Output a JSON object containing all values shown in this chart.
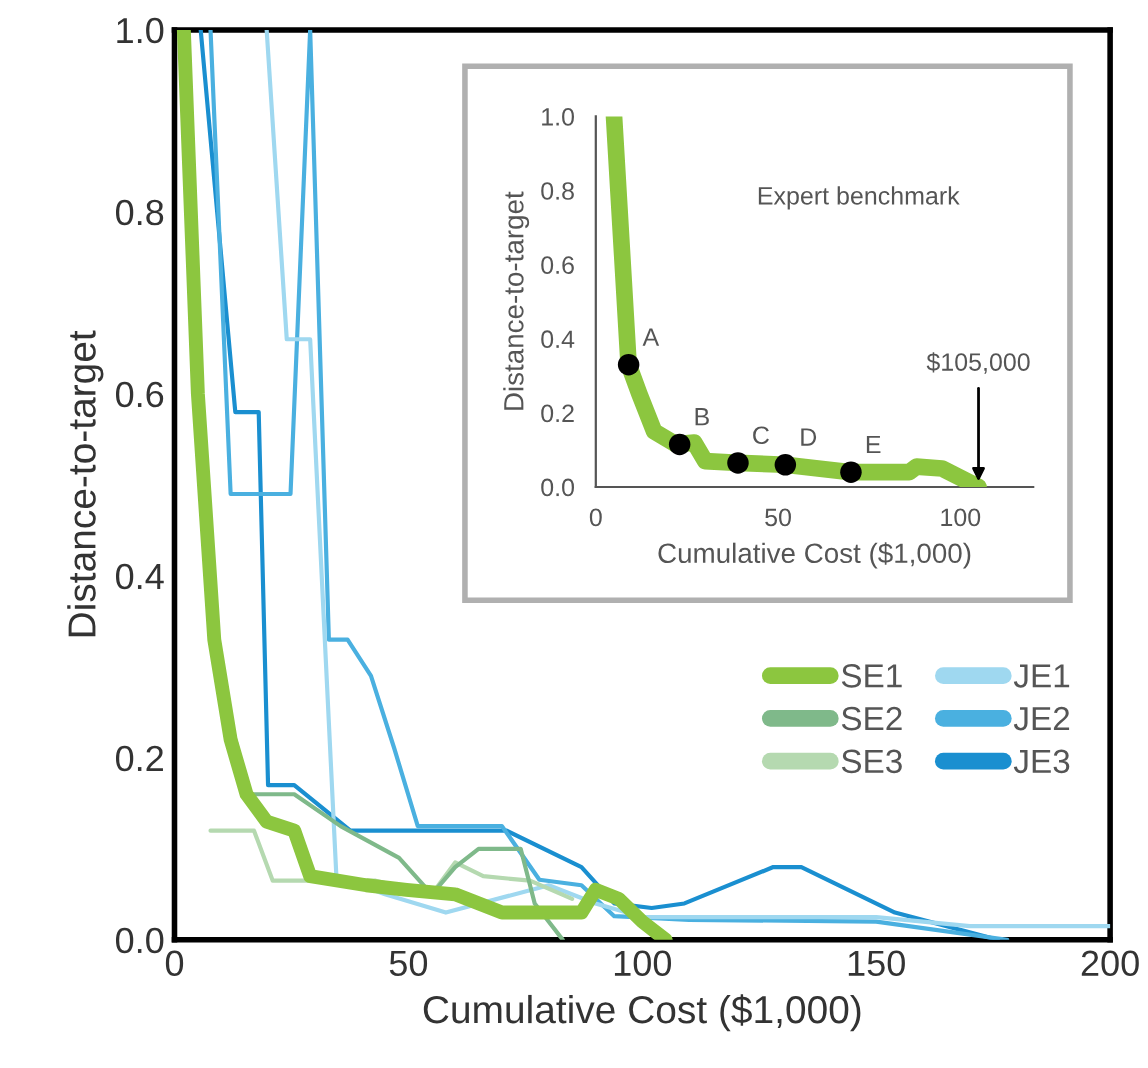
{
  "chart_data": [
    {
      "type": "line",
      "xlabel": "Cumulative Cost ($1,000)",
      "ylabel": "Distance-to-target",
      "xlim": [
        0,
        200
      ],
      "ylim": [
        0,
        1
      ],
      "xticks": [
        0,
        50,
        100,
        150,
        200
      ],
      "yticks": [
        {
          "value": 0,
          "label": "0.0"
        },
        {
          "value": 0.2,
          "label": "0.2"
        },
        {
          "value": 0.4,
          "label": "0.4"
        },
        {
          "value": 0.6,
          "label": "0.6"
        },
        {
          "value": 0.8,
          "label": "0.8"
        },
        {
          "value": 1,
          "label": "1.0"
        }
      ],
      "grid": false,
      "legend": "right",
      "series": [
        {
          "name": "SE1",
          "color": "#8cc63f",
          "x": [
            2,
            5,
            8.5,
            12,
            15.4,
            19.7,
            25.6,
            29,
            41,
            49.6,
            60,
            70,
            87,
            90,
            95,
            100,
            105
          ],
          "values": [
            1.0,
            0.6,
            0.33,
            0.22,
            0.16,
            0.13,
            0.12,
            0.07,
            0.06,
            0.055,
            0.05,
            0.03,
            0.03,
            0.055,
            0.045,
            0.02,
            0.0
          ]
        },
        {
          "name": "SE2",
          "color": "#7fb98a",
          "x": [
            9,
            16,
            25.6,
            35.5,
            48,
            55,
            60,
            65,
            74,
            77,
            83
          ],
          "values": [
            0.3,
            0.16,
            0.16,
            0.125,
            0.09,
            0.05,
            0.08,
            0.1,
            0.1,
            0.04,
            0.0
          ]
        },
        {
          "name": "SE3",
          "color": "#b5d9b0",
          "x": [
            7.7,
            17,
            21,
            43,
            55,
            60,
            66,
            76,
            85
          ],
          "values": [
            0.12,
            0.12,
            0.065,
            0.065,
            0.05,
            0.085,
            0.07,
            0.065,
            0.045
          ]
        },
        {
          "name": "JE1",
          "color": "#9fd8f0",
          "x": [
            19.7,
            24,
            29,
            34.6,
            45,
            58,
            80,
            90,
            100,
            150,
            170,
            200
          ],
          "values": [
            1.0,
            0.66,
            0.66,
            0.07,
            0.05,
            0.03,
            0.06,
            0.04,
            0.025,
            0.025,
            0.015,
            0.015
          ]
        },
        {
          "name": "JE2",
          "color": "#4ab0e0",
          "x": [
            7.7,
            12,
            24.8,
            29,
            33,
            37,
            42,
            47,
            52,
            70,
            78,
            87,
            94,
            110,
            150,
            178
          ],
          "values": [
            1.0,
            0.49,
            0.49,
            1.0,
            0.33,
            0.33,
            0.29,
            0.21,
            0.125,
            0.125,
            0.066,
            0.06,
            0.026,
            0.022,
            0.02,
            0.0
          ]
        },
        {
          "name": "JE3",
          "color": "#1a8fd0",
          "x": [
            5.6,
            13,
            18,
            20,
            25.6,
            37.6,
            71,
            87,
            94,
            102,
            109,
            128,
            134,
            154,
            176
          ],
          "values": [
            1.0,
            0.58,
            0.58,
            0.17,
            0.17,
            0.12,
            0.12,
            0.08,
            0.04,
            0.035,
            0.04,
            0.08,
            0.08,
            0.03,
            0.0
          ]
        }
      ]
    },
    {
      "type": "line",
      "xlabel": "Cumulative Cost ($1,000)",
      "ylabel": "Distance-to-target",
      "xlim": [
        0,
        120
      ],
      "ylim": [
        0,
        1
      ],
      "xticks": [
        0,
        50,
        100
      ],
      "yticks": [
        {
          "value": 0,
          "label": "0.0"
        },
        {
          "value": 0.2,
          "label": "0.2"
        },
        {
          "value": 0.4,
          "label": "0.4"
        },
        {
          "value": 0.6,
          "label": "0.6"
        },
        {
          "value": 0.8,
          "label": "0.8"
        },
        {
          "value": 1,
          "label": "1.0"
        }
      ],
      "grid": false,
      "series": [
        {
          "color": "#8cc63f",
          "x": [
            5,
            9,
            12,
            16,
            22,
            27,
            30,
            39,
            52,
            70,
            86,
            88,
            95,
            105
          ],
          "values": [
            1.0,
            0.33,
            0.25,
            0.15,
            0.115,
            0.12,
            0.07,
            0.065,
            0.06,
            0.04,
            0.04,
            0.055,
            0.05,
            0.0
          ]
        },
        {
          "type": "scatter",
          "color": "#000000",
          "x": [
            9,
            23,
            39,
            52,
            70
          ],
          "values": [
            0.33,
            0.115,
            0.065,
            0.06,
            0.04
          ]
        }
      ],
      "annotations": [
        "Expert benchmark",
        {
          "text": "A",
          "x": 9,
          "y": 0.33
        },
        {
          "text": "B",
          "x": 23,
          "y": 0.115
        },
        {
          "text": "C",
          "x": 39,
          "y": 0.065
        },
        {
          "text": "D",
          "x": 52,
          "y": 0.06
        },
        {
          "text": "E",
          "x": 70,
          "y": 0.04
        },
        {
          "text": "$105,000",
          "x": 105,
          "y": 0
        }
      ]
    }
  ]
}
